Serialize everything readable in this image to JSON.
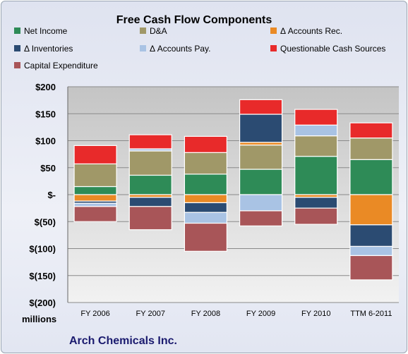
{
  "chart_data": {
    "type": "bar",
    "stacked": true,
    "title": "Free Cash Flow Components",
    "footer": "Arch Chemicals Inc.",
    "yunit": "millions",
    "ylim": [
      -200,
      200
    ],
    "yticks": [
      200,
      150,
      100,
      50,
      0,
      -50,
      -100,
      -150,
      -200
    ],
    "ytick_labels": [
      "$200",
      "$150",
      "$100",
      "$50",
      "$-",
      "$(50)",
      "$(100)",
      "$(150)",
      "$(200)"
    ],
    "grid": true,
    "legend_position": "top",
    "categories": [
      "FY 2006",
      "FY 2007",
      "FY 2008",
      "FY 2009",
      "FY 2010",
      "TTM 6-2011"
    ],
    "series": [
      {
        "name": "Net Income",
        "color": "#2e8b57",
        "values": [
          15,
          36,
          38,
          47,
          71,
          65
        ]
      },
      {
        "name": "D&A",
        "color": "#a09868",
        "values": [
          42,
          45,
          40,
          45,
          38,
          40
        ]
      },
      {
        "name": "Δ Accounts Rec.",
        "color": "#ea8a25",
        "values": [
          -12,
          -5,
          -15,
          5,
          -5,
          -56
        ]
      },
      {
        "name": "Δ Inventories",
        "color": "#2b4b72",
        "values": [
          -4,
          -17,
          -18,
          52,
          -20,
          -40
        ]
      },
      {
        "name": "Δ Accounts Pay.",
        "color": "#a9c3e4",
        "values": [
          -6,
          4,
          -20,
          -30,
          20,
          -17
        ]
      },
      {
        "name": "Questionable Cash Sources",
        "color": "#e82a2a",
        "values": [
          34,
          26,
          30,
          27,
          29,
          28
        ]
      },
      {
        "name": "Capital Expenditure",
        "color": "#a85558",
        "values": [
          -28,
          -43,
          -52,
          -28,
          -30,
          -45
        ]
      }
    ]
  }
}
